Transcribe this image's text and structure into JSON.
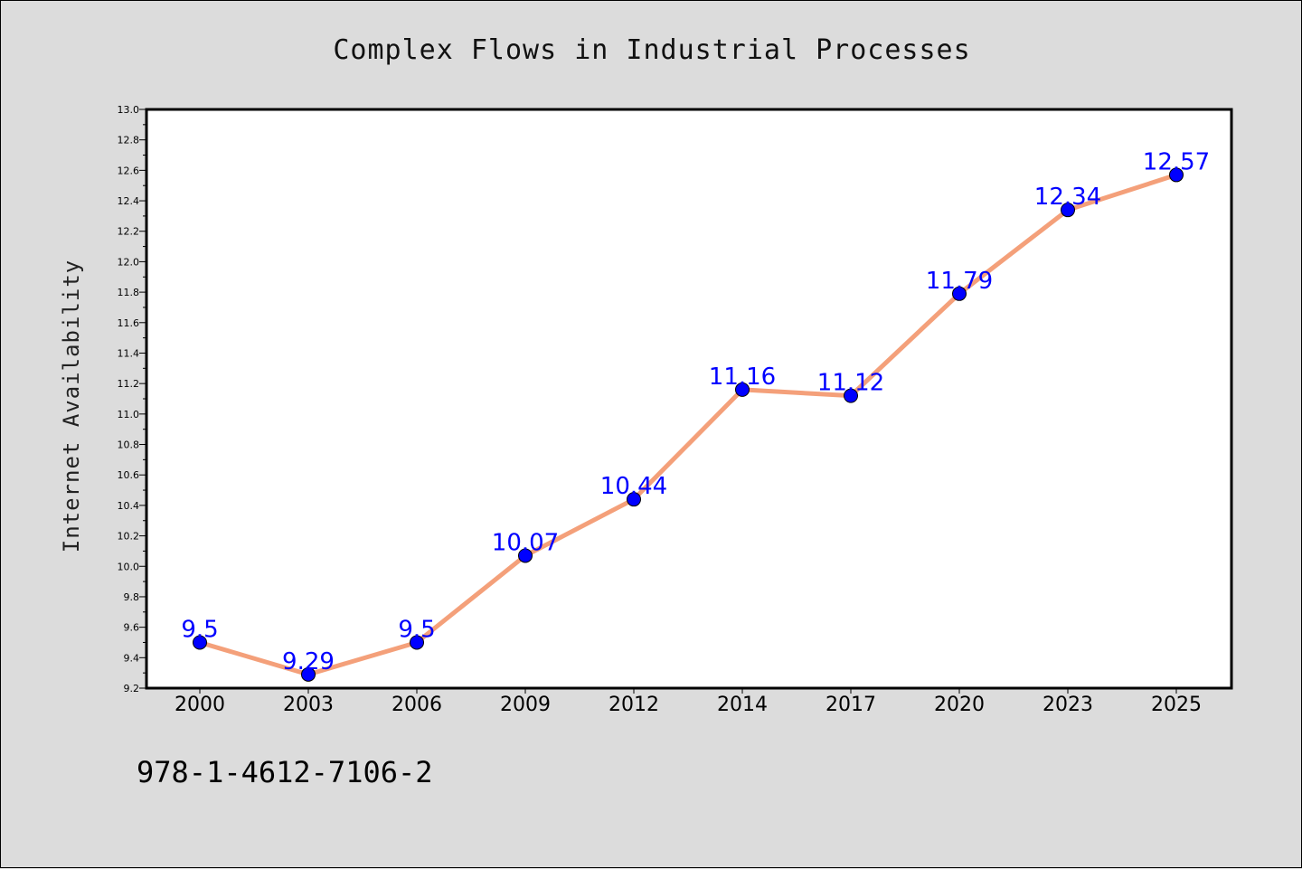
{
  "chart_data": {
    "type": "line",
    "title": "Complex Flows in Industrial Processes",
    "xlabel": "",
    "ylabel": "Internet Availability",
    "categories": [
      "2000",
      "2003",
      "2006",
      "2009",
      "2012",
      "2014",
      "2017",
      "2020",
      "2023",
      "2025"
    ],
    "series": [
      {
        "values": [
          9.5,
          9.29,
          9.5,
          10.07,
          10.44,
          11.16,
          11.12,
          11.79,
          12.34,
          12.57
        ]
      }
    ],
    "data_labels": [
      "9.5",
      "9.29",
      "9.5",
      "10.07",
      "10.44",
      "11.16",
      "11.12",
      "11.79",
      "12.34",
      "12.57"
    ],
    "ylim": [
      9.2,
      13.0
    ],
    "yticks": [
      "9.2",
      "9.4",
      "9.6",
      "9.8",
      "10.0",
      "10.2",
      "10.4",
      "10.6",
      "10.8",
      "11.0",
      "11.2",
      "11.4",
      "11.6",
      "11.8",
      "12.0",
      "12.2",
      "12.4",
      "12.6",
      "12.8",
      "13.0"
    ],
    "ytick_values": [
      9.2,
      9.4,
      9.6,
      9.8,
      10.0,
      10.2,
      10.4,
      10.6,
      10.8,
      11.0,
      11.2,
      11.4,
      11.6,
      11.8,
      12.0,
      12.2,
      12.4,
      12.6,
      12.8,
      13.0
    ],
    "grid": false,
    "colors": {
      "line": "#f4a07a",
      "marker": "#0000ff",
      "label": "#0000ff",
      "plot_bg": "#ffffff",
      "figure_bg": "#dcdcdc"
    }
  },
  "footer_text": "978-1-4612-7106-2"
}
